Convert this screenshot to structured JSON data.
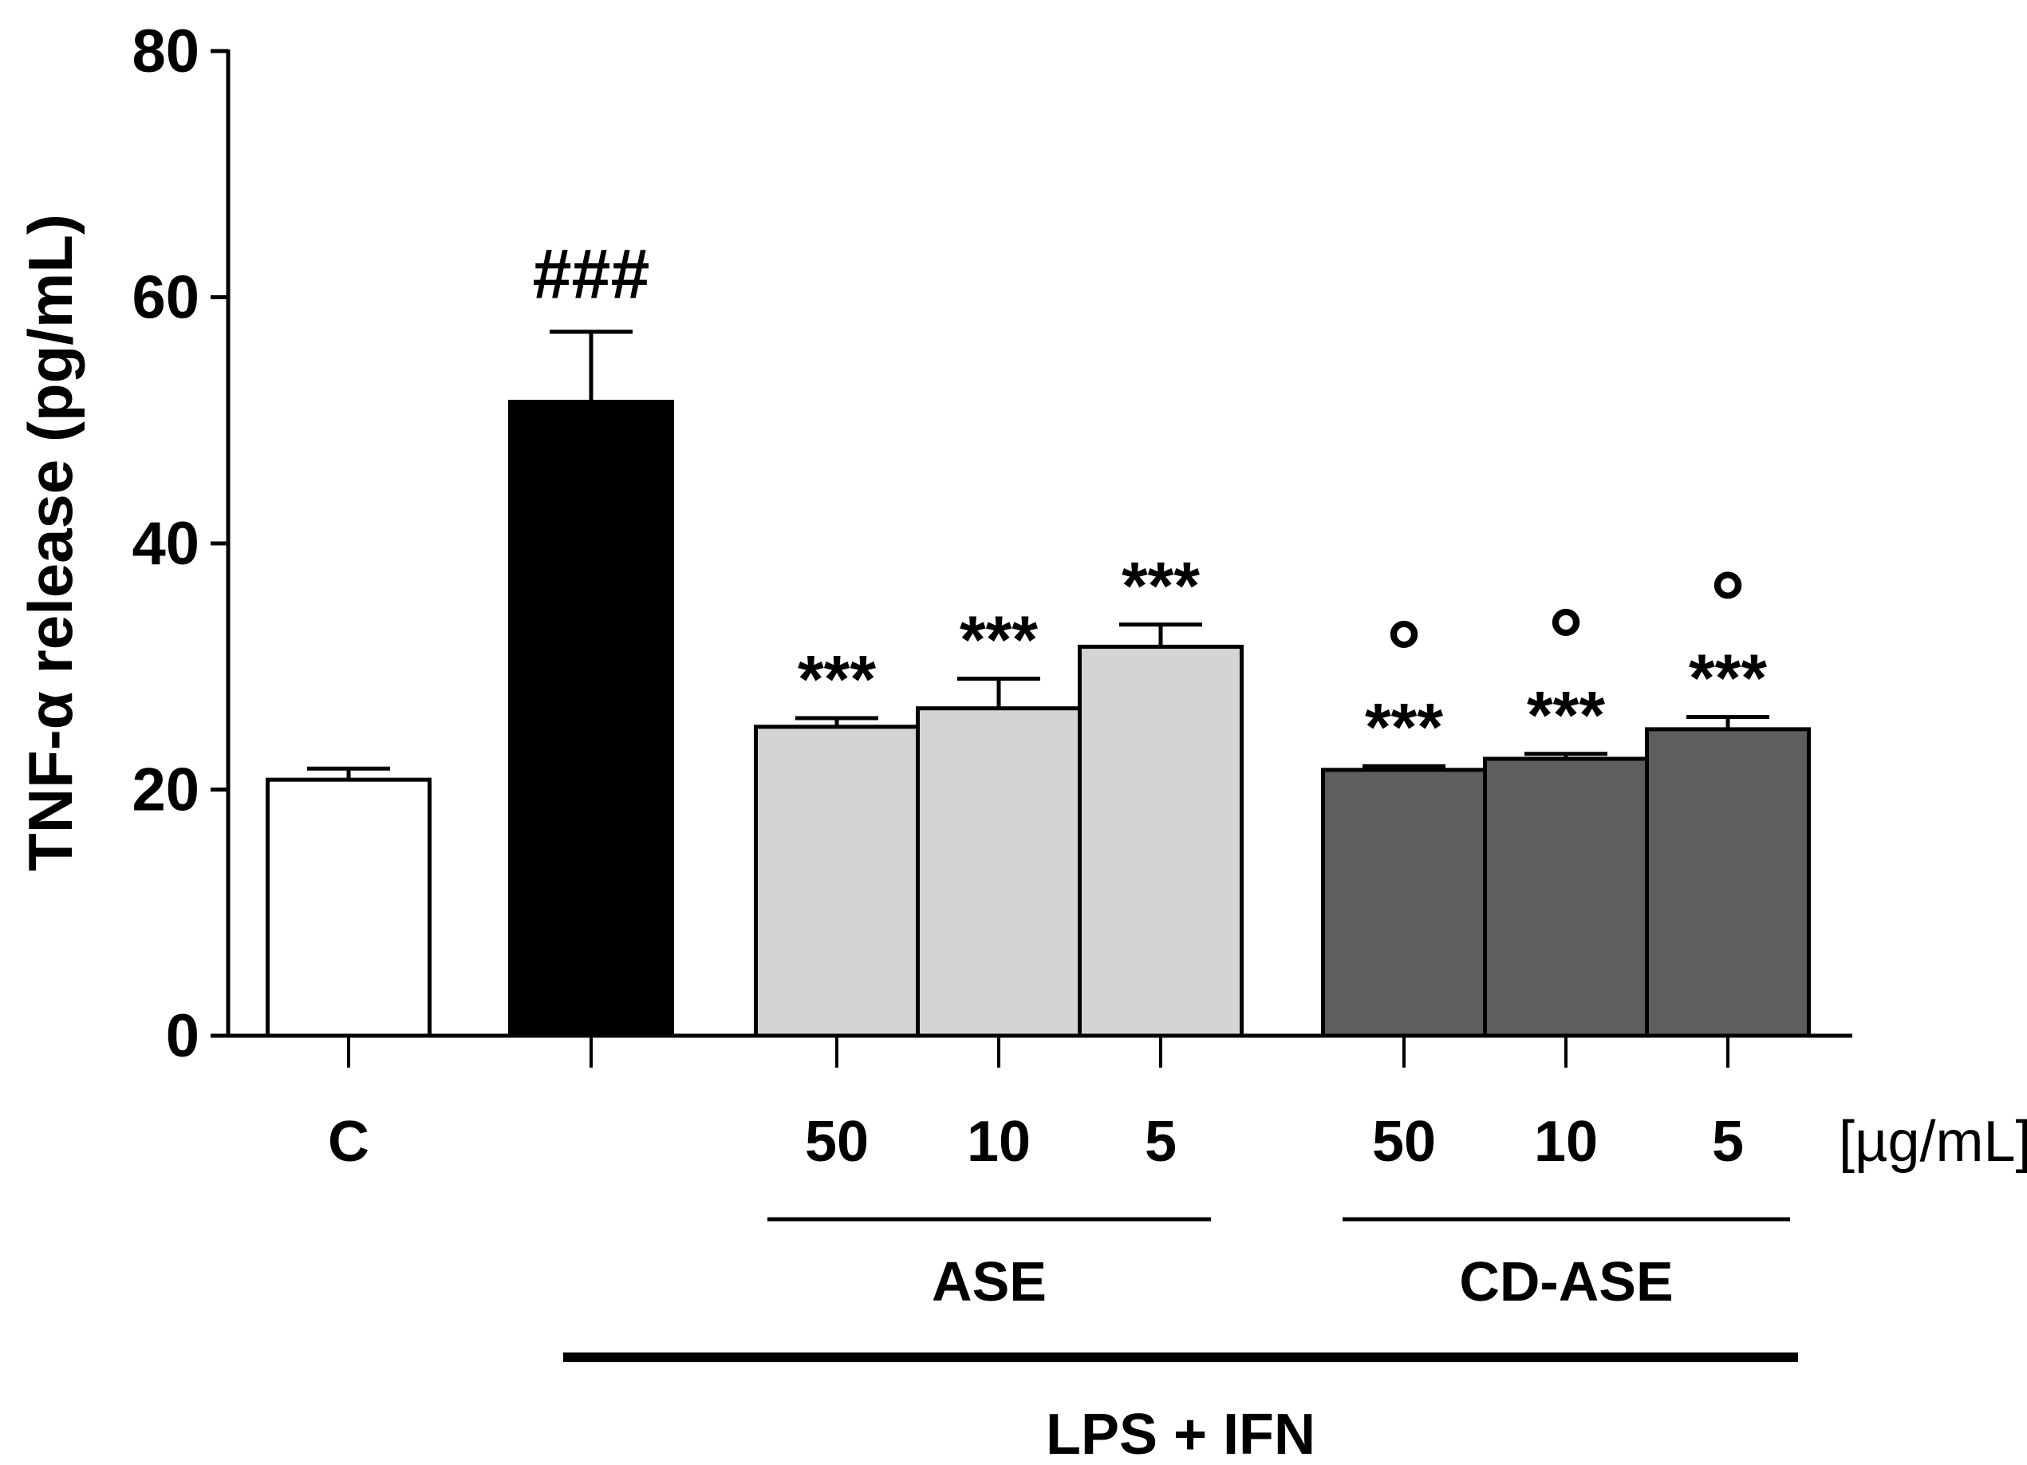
{
  "chart_data": {
    "type": "bar",
    "ylabel": "TNF-α release (pg/mL)",
    "ylim": [
      0,
      80
    ],
    "yticks": [
      "0",
      "20",
      "40",
      "60",
      "80"
    ],
    "grid": false,
    "categories": [
      "C",
      "",
      "50",
      "10",
      "5",
      "50",
      "10",
      "5"
    ],
    "unit_label": "[µg/mL]",
    "values": [
      20.8,
      51.5,
      25.1,
      26.6,
      31.6,
      21.6,
      22.5,
      24.9
    ],
    "errors": [
      0.9,
      5.7,
      0.7,
      2.4,
      1.8,
      0.3,
      0.4,
      1.0
    ],
    "fills": [
      "#ffffff",
      "#000000",
      "#d4d4d4",
      "#d4d4d4",
      "#d4d4d4",
      "#5e5e5e",
      "#5e5e5e",
      "#5e5e5e"
    ],
    "significance": [
      "",
      "###",
      "***",
      "***",
      "***",
      "***",
      "***",
      "***"
    ],
    "secondary_marks": [
      "",
      "",
      "",
      "",
      "",
      "°",
      "°",
      "°"
    ],
    "groups": [
      {
        "label": "ASE",
        "from": 2,
        "to": 4
      },
      {
        "label": "CD-ASE",
        "from": 5,
        "to": 7
      },
      {
        "label": "LPS + IFN",
        "from": 1,
        "to": 7
      }
    ]
  }
}
